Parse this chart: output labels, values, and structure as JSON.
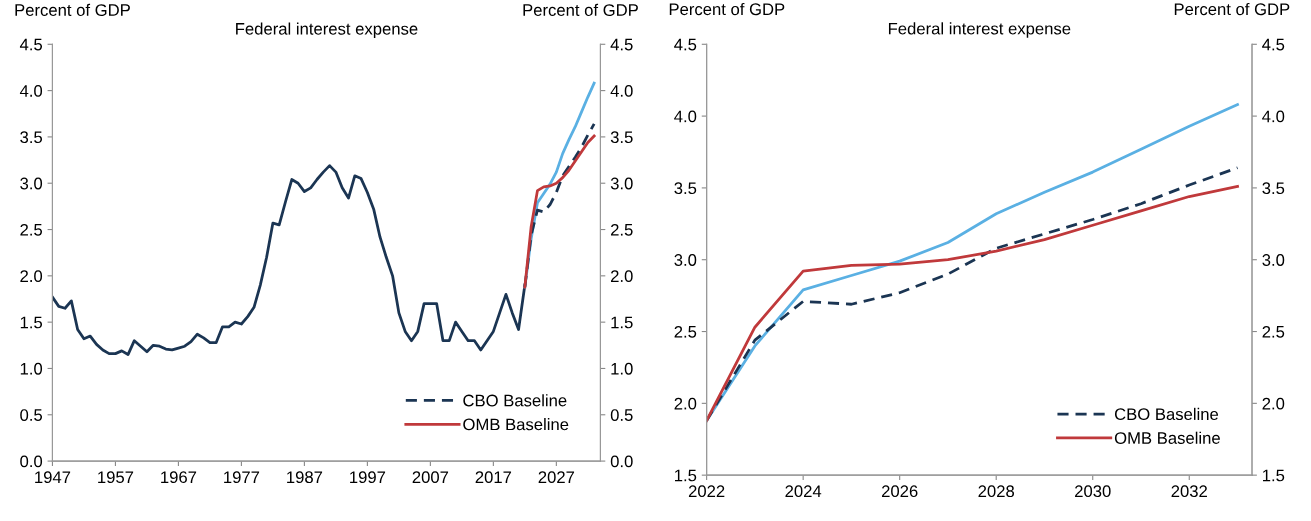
{
  "chart_data": [
    {
      "type": "line",
      "title": "Federal interest expense",
      "ylabel": "Percent of GDP",
      "y2label": "Percent of GDP",
      "xlim": [
        1947,
        2034
      ],
      "xticks": [
        1947,
        1957,
        1967,
        1977,
        1987,
        1997,
        2007,
        2017,
        2027
      ],
      "ylim": [
        0,
        4.5
      ],
      "yticks": [
        {
          "value": 0,
          "label": "0.0"
        },
        0.5,
        {
          "value": 1,
          "label": "1.0"
        },
        1.5,
        {
          "value": 2,
          "label": "2.0"
        },
        2.5,
        {
          "value": 3,
          "label": "3.0"
        },
        3.5,
        {
          "value": 4,
          "label": "4.0"
        },
        4.5
      ],
      "y2lim": [
        0,
        4.5
      ],
      "y2ticks": [
        {
          "value": 0,
          "label": "0.0"
        },
        0.5,
        {
          "value": 1,
          "label": "1.0"
        },
        1.5,
        {
          "value": 2,
          "label": "2.0"
        },
        2.5,
        {
          "value": 3,
          "label": "3.0"
        },
        3.5,
        {
          "value": 4,
          "label": "4.0"
        },
        4.5
      ],
      "grid": false,
      "legend": "bottom right",
      "series": [
        {
          "color": "#1b3553",
          "line_style": "solid",
          "x": [
            1947,
            1948,
            1949,
            1950,
            1951,
            1952,
            1953,
            1954,
            1955,
            1956,
            1957,
            1958,
            1959,
            1960,
            1961,
            1962,
            1963,
            1964,
            1965,
            1966,
            1967,
            1968,
            1969,
            1970,
            1971,
            1972,
            1973,
            1974,
            1975,
            1976,
            1977,
            1978,
            1979,
            1980,
            1981,
            1982,
            1983,
            1984,
            1985,
            1986,
            1987,
            1988,
            1989,
            1990,
            1991,
            1992,
            1993,
            1994,
            1995,
            1996,
            1997,
            1998,
            1999,
            2000,
            2001,
            2002,
            2003,
            2004,
            2005,
            2006,
            2007,
            2008,
            2009,
            2010,
            2011,
            2012,
            2013,
            2014,
            2015,
            2016,
            2017,
            2018,
            2019,
            2020,
            2021,
            2022
          ],
          "values": [
            1.77,
            1.67,
            1.65,
            1.73,
            1.42,
            1.32,
            1.35,
            1.26,
            1.2,
            1.16,
            1.16,
            1.19,
            1.15,
            1.3,
            1.24,
            1.18,
            1.25,
            1.24,
            1.21,
            1.2,
            1.22,
            1.24,
            1.29,
            1.37,
            1.33,
            1.28,
            1.28,
            1.45,
            1.45,
            1.5,
            1.48,
            1.56,
            1.66,
            1.9,
            2.2,
            2.57,
            2.55,
            2.8,
            3.04,
            3.0,
            2.91,
            2.95,
            3.04,
            3.12,
            3.19,
            3.12,
            2.95,
            2.84,
            3.08,
            3.05,
            2.9,
            2.72,
            2.42,
            2.2,
            2.0,
            1.6,
            1.4,
            1.3,
            1.4,
            1.7,
            1.7,
            1.7,
            1.3,
            1.3,
            1.5,
            1.4,
            1.3,
            1.3,
            1.2,
            1.3,
            1.4,
            1.6,
            1.8,
            1.6,
            1.42,
            1.9
          ]
        },
        {
          "color": "#5ab0e3",
          "line_style": "solid",
          "x": [
            2022,
            2023,
            2024,
            2025,
            2026,
            2027,
            2028,
            2029,
            2030,
            2031,
            2032,
            2033
          ],
          "values": [
            1.88,
            2.4,
            2.79,
            2.89,
            2.99,
            3.12,
            3.32,
            3.47,
            3.61,
            3.77,
            3.93,
            4.08
          ]
        },
        {
          "name": "CBO Baseline",
          "color": "#1b3553",
          "line_style": "dashed",
          "x": [
            2022,
            2023,
            2024,
            2025,
            2026,
            2027,
            2028,
            2029,
            2030,
            2031,
            2032,
            2033
          ],
          "values": [
            1.88,
            2.44,
            2.71,
            2.69,
            2.77,
            2.9,
            3.08,
            3.18,
            3.28,
            3.39,
            3.52,
            3.64
          ]
        },
        {
          "name": "OMB Baseline",
          "color": "#c0393b",
          "line_style": "solid",
          "x": [
            2022,
            2023,
            2024,
            2025,
            2026,
            2027,
            2028,
            2029,
            2030,
            2031,
            2032,
            2033
          ],
          "values": [
            1.88,
            2.53,
            2.92,
            2.96,
            2.97,
            3.0,
            3.06,
            3.14,
            3.24,
            3.34,
            3.44,
            3.51
          ]
        }
      ]
    },
    {
      "type": "line",
      "title": "Federal interest expense",
      "ylabel": "Percent of GDP",
      "y2label": "Percent of GDP",
      "xlim": [
        2022,
        2033.3
      ],
      "xticks": [
        2022,
        2024,
        2026,
        2028,
        2030,
        2032
      ],
      "ylim": [
        1.5,
        4.5
      ],
      "yticks": [
        1.5,
        {
          "value": 2,
          "label": "2.0"
        },
        2.5,
        {
          "value": 3,
          "label": "3.0"
        },
        3.5,
        {
          "value": 4,
          "label": "4.0"
        },
        4.5
      ],
      "y2lim": [
        1.5,
        4.5
      ],
      "y2ticks": [
        1.5,
        {
          "value": 2,
          "label": "2.0"
        },
        2.5,
        {
          "value": 3,
          "label": "3.0"
        },
        3.5,
        {
          "value": 4,
          "label": "4.0"
        },
        4.5
      ],
      "grid": false,
      "legend": "bottom right",
      "series": [
        {
          "color": "#5ab0e3",
          "line_style": "solid",
          "x": [
            2022,
            2023,
            2024,
            2025,
            2026,
            2027,
            2028,
            2029,
            2030,
            2031,
            2032,
            2033
          ],
          "values": [
            1.88,
            2.4,
            2.79,
            2.89,
            2.99,
            3.12,
            3.32,
            3.47,
            3.61,
            3.77,
            3.93,
            4.08
          ]
        },
        {
          "name": "CBO Baseline",
          "color": "#1b3553",
          "line_style": "dashed",
          "x": [
            2022,
            2023,
            2024,
            2025,
            2026,
            2027,
            2028,
            2029,
            2030,
            2031,
            2032,
            2033
          ],
          "values": [
            1.88,
            2.44,
            2.71,
            2.69,
            2.77,
            2.9,
            3.08,
            3.18,
            3.28,
            3.39,
            3.52,
            3.64
          ]
        },
        {
          "name": "OMB Baseline",
          "color": "#c0393b",
          "line_style": "solid",
          "x": [
            2022,
            2023,
            2024,
            2025,
            2026,
            2027,
            2028,
            2029,
            2030,
            2031,
            2032,
            2033
          ],
          "values": [
            1.88,
            2.53,
            2.92,
            2.96,
            2.97,
            3.0,
            3.06,
            3.14,
            3.24,
            3.34,
            3.44,
            3.51
          ]
        }
      ]
    }
  ]
}
